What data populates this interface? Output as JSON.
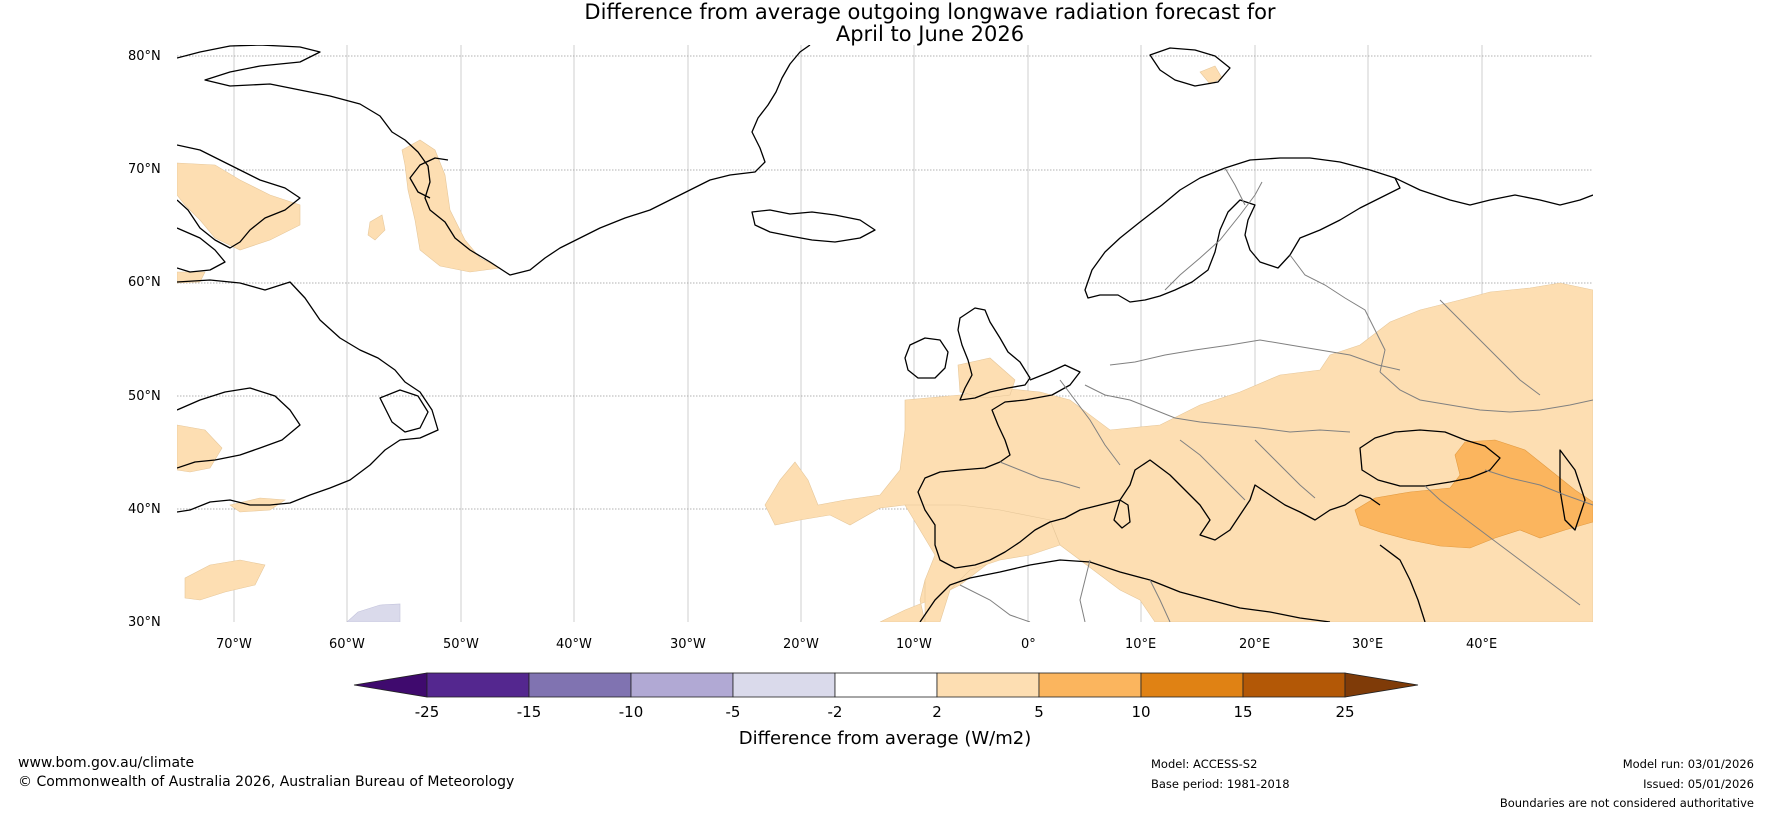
{
  "title": {
    "line1": "Difference from average outgoing longwave radiation forecast for",
    "line2": "April to June 2026"
  },
  "axes": {
    "lat_labels": [
      "80°N",
      "70°N",
      "60°N",
      "50°N",
      "40°N",
      "30°N"
    ],
    "lon_labels": [
      "70°W",
      "60°W",
      "50°W",
      "40°W",
      "30°W",
      "20°W",
      "10°W",
      "0°",
      "10°E",
      "20°E",
      "30°E",
      "40°E"
    ]
  },
  "legend": {
    "ticks": [
      "-25",
      "-15",
      "-10",
      "-5",
      "-2",
      "2",
      "5",
      "10",
      "15",
      "25"
    ],
    "label": "Difference from average (W/m2)",
    "colors": [
      "#3f0a6e",
      "#54278f",
      "#8073b1",
      "#b1a9d4",
      "#dadaeb",
      "#ffffff",
      "#fddeb2",
      "#fbb55e",
      "#e08214",
      "#b35806",
      "#7f3b08"
    ]
  },
  "map": {
    "anomaly_classes": {
      "weak_positive": "2 to 5",
      "moderate_positive": "5 to 10",
      "weak_negative": "-5 to -2"
    }
  },
  "footer": {
    "website": "www.bom.gov.au/climate",
    "copyright": "© Commonwealth of Australia 2026, Australian Bureau of Meteorology",
    "model": "Model: ACCESS-S2",
    "base_period": "Base period: 1981-2018",
    "model_run": "Model run: 03/01/2026",
    "issued": "Issued: 05/01/2026",
    "disclaimer": "Boundaries are not considered authoritative"
  }
}
